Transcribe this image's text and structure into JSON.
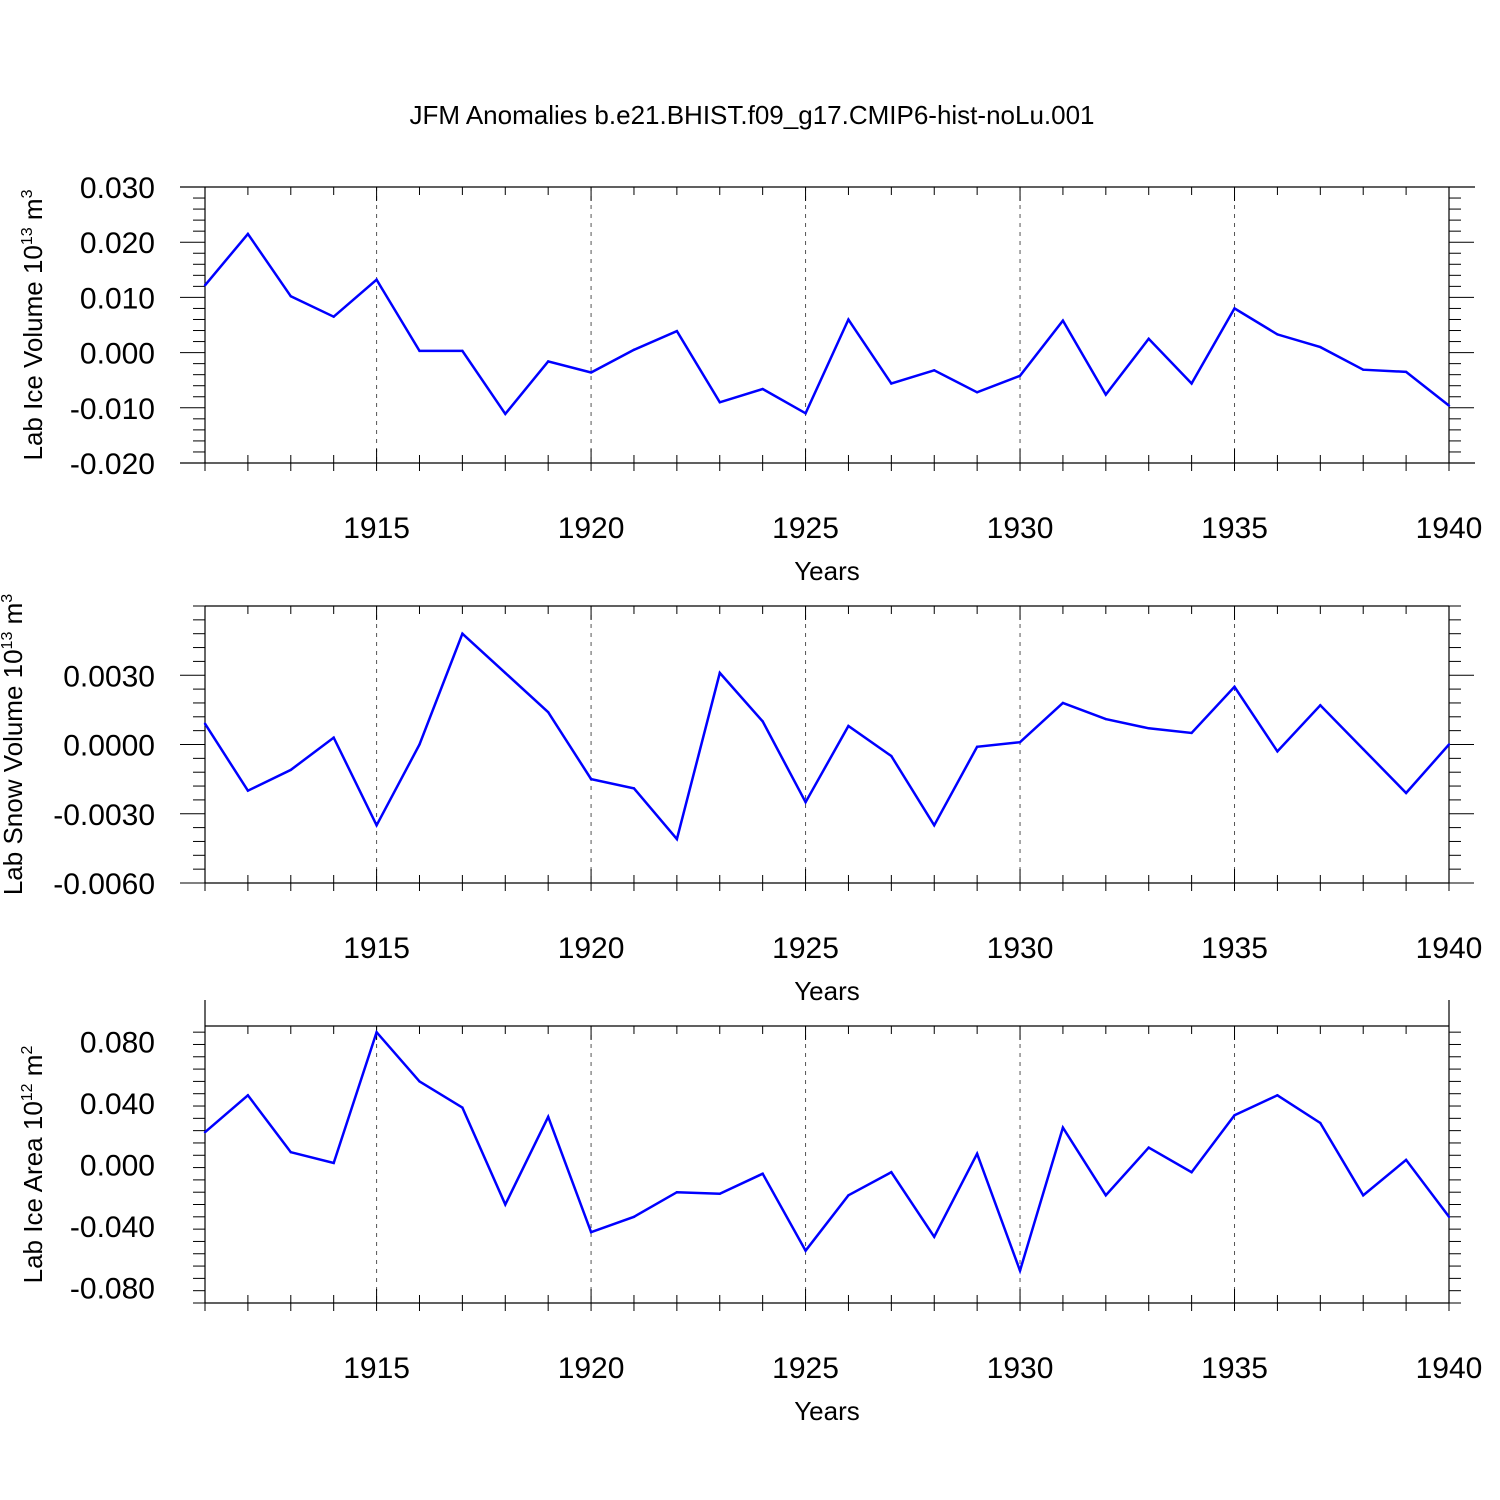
{
  "title": "JFM Anomalies b.e21.BHIST.f09_g17.CMIP6-hist-noLu.001",
  "colors": {
    "line": "#0000ff",
    "axis": "#000000",
    "grid": "#555555"
  },
  "chart_data": [
    {
      "type": "line",
      "ylabel": {
        "text": "Lab Ice Volume 10",
        "exponent": "13",
        "unit": " m",
        "unit_exponent": "3"
      },
      "xlabel": "Years",
      "xlim": [
        1911,
        1940
      ],
      "ylim": [
        -0.02,
        0.03
      ],
      "yticks": [
        -0.02,
        -0.01,
        0.0,
        0.01,
        0.02,
        0.03
      ],
      "ytick_labels": [
        "-0.020",
        "-0.010",
        "0.000",
        "0.010",
        "0.020",
        "0.030"
      ],
      "xticks": [
        1915,
        1920,
        1925,
        1930,
        1935,
        1940
      ],
      "xtick_labels": [
        "1915",
        "1920",
        "1925",
        "1930",
        "1935",
        "1940"
      ],
      "x": [
        1911,
        1912,
        1913,
        1914,
        1915,
        1916,
        1917,
        1918,
        1919,
        1920,
        1921,
        1922,
        1923,
        1924,
        1925,
        1926,
        1927,
        1928,
        1929,
        1930,
        1931,
        1932,
        1933,
        1934,
        1935,
        1936,
        1937,
        1938,
        1939,
        1940
      ],
      "values": [
        0.0122,
        0.0215,
        0.0102,
        0.0065,
        0.0132,
        0.0003,
        0.0003,
        -0.0111,
        -0.0016,
        -0.0036,
        0.0005,
        0.0039,
        -0.009,
        -0.0066,
        -0.011,
        0.006,
        -0.0056,
        -0.0032,
        -0.0072,
        -0.0042,
        0.0058,
        -0.0076,
        0.0025,
        -0.0056,
        0.008,
        0.0033,
        0.001,
        -0.0031,
        -0.0035,
        -0.0096
      ]
    },
    {
      "type": "line",
      "ylabel": {
        "text": "Lab Snow Volume 10",
        "exponent": "13",
        "unit": " m",
        "unit_exponent": "3"
      },
      "xlabel": "Years",
      "xlim": [
        1911,
        1940
      ],
      "ylim": [
        -0.006,
        0.006
      ],
      "yticks": [
        -0.006,
        -0.003,
        0.0,
        0.003
      ],
      "ytick_labels": [
        "-0.0060",
        "-0.0030",
        "0.0000",
        "0.0030"
      ],
      "xticks": [
        1915,
        1920,
        1925,
        1930,
        1935,
        1940
      ],
      "xtick_labels": [
        "1915",
        "1920",
        "1925",
        "1930",
        "1935",
        "1940"
      ],
      "x": [
        1911,
        1912,
        1913,
        1914,
        1915,
        1916,
        1917,
        1918,
        1919,
        1920,
        1921,
        1922,
        1923,
        1924,
        1925,
        1926,
        1927,
        1928,
        1929,
        1930,
        1931,
        1932,
        1933,
        1934,
        1935,
        1936,
        1937,
        1938,
        1939,
        1940
      ],
      "values": [
        0.0009,
        -0.002,
        -0.0011,
        0.0003,
        -0.0035,
        0.0,
        0.0048,
        0.0031,
        0.0014,
        -0.0015,
        -0.0019,
        -0.0041,
        0.0031,
        0.001,
        -0.0025,
        0.0008,
        -0.0005,
        -0.0035,
        -0.0001,
        0.0001,
        0.0018,
        0.0011,
        0.0007,
        0.0005,
        0.0025,
        -0.0003,
        0.0017,
        -0.0002,
        -0.0021,
        -0.0
      ]
    },
    {
      "type": "line",
      "ylabel": {
        "text": "Lab Ice Area 10",
        "exponent": "12",
        "unit": " m",
        "unit_exponent": "2"
      },
      "xlabel": "Years",
      "xlim": [
        1911,
        1940
      ],
      "ylim": [
        -0.09,
        0.09
      ],
      "yticks": [
        -0.08,
        -0.04,
        0.0,
        0.04,
        0.08
      ],
      "ytick_labels": [
        "-0.080",
        "-0.040",
        "0.000",
        "0.040",
        "0.080"
      ],
      "xticks": [
        1915,
        1920,
        1925,
        1930,
        1935,
        1940
      ],
      "xtick_labels": [
        "1915",
        "1920",
        "1925",
        "1930",
        "1935",
        "1940"
      ],
      "x": [
        1911,
        1912,
        1913,
        1914,
        1915,
        1916,
        1917,
        1918,
        1919,
        1920,
        1921,
        1922,
        1923,
        1924,
        1925,
        1926,
        1927,
        1928,
        1929,
        1930,
        1931,
        1932,
        1933,
        1934,
        1935,
        1936,
        1937,
        1938,
        1939,
        1940
      ],
      "values": [
        0.021,
        0.045,
        0.008,
        0.001,
        0.086,
        0.054,
        0.037,
        -0.026,
        0.031,
        -0.044,
        -0.034,
        -0.018,
        -0.019,
        -0.006,
        -0.056,
        -0.02,
        -0.005,
        -0.047,
        0.007,
        -0.069,
        0.024,
        -0.02,
        0.011,
        -0.005,
        0.032,
        0.045,
        0.027,
        -0.02,
        0.003,
        -0.034
      ]
    }
  ]
}
